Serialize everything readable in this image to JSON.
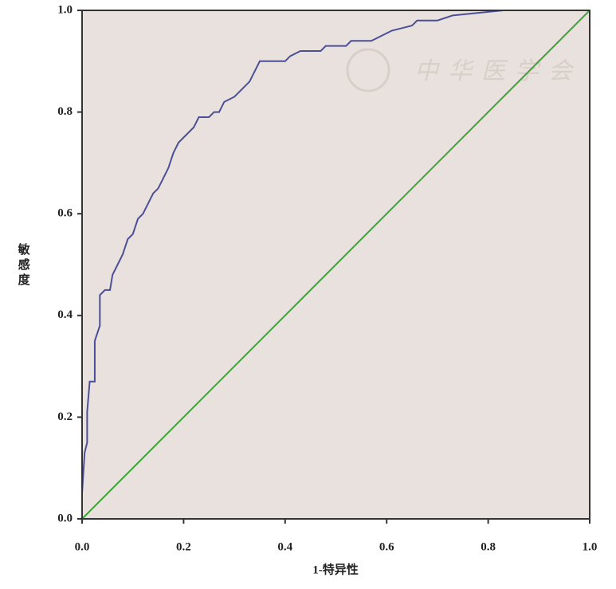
{
  "chart_data": {
    "type": "line",
    "xlabel": "1-特异性",
    "ylabel": "敏感度",
    "watermark": "中华医学会",
    "xlim": [
      0,
      1
    ],
    "ylim": [
      0,
      1
    ],
    "xticks": [
      {
        "value": 0,
        "label": "0.0"
      },
      0.2,
      0.4,
      0.6,
      0.8,
      {
        "value": 1,
        "label": "1.0"
      }
    ],
    "yticks": [
      {
        "value": 0,
        "label": "0.0"
      },
      0.2,
      0.4,
      0.6,
      0.8,
      {
        "value": 1,
        "label": "1.0"
      }
    ],
    "background": "#e9e1dd",
    "series": [
      {
        "color": "#4b4f98",
        "x": [
          0,
          0,
          0.005,
          0.01,
          0.01,
          0.015,
          0.025,
          0.025,
          0.035,
          0.035,
          0.045,
          0.055,
          0.06,
          0.07,
          0.08,
          0.09,
          0.1,
          0.11,
          0.12,
          0.13,
          0.14,
          0.15,
          0.16,
          0.17,
          0.18,
          0.19,
          0.2,
          0.21,
          0.22,
          0.23,
          0.25,
          0.26,
          0.27,
          0.28,
          0.3,
          0.31,
          0.32,
          0.33,
          0.34,
          0.35,
          0.4,
          0.41,
          0.43,
          0.47,
          0.48,
          0.52,
          0.53,
          0.57,
          0.59,
          0.61,
          0.65,
          0.66,
          0.7,
          0.73,
          0.83,
          1.0
        ],
        "values": [
          0,
          0.05,
          0.13,
          0.15,
          0.21,
          0.27,
          0.27,
          0.35,
          0.38,
          0.44,
          0.45,
          0.45,
          0.48,
          0.5,
          0.52,
          0.55,
          0.56,
          0.59,
          0.6,
          0.62,
          0.64,
          0.65,
          0.67,
          0.69,
          0.72,
          0.74,
          0.75,
          0.76,
          0.77,
          0.79,
          0.79,
          0.8,
          0.8,
          0.82,
          0.83,
          0.84,
          0.85,
          0.86,
          0.88,
          0.9,
          0.9,
          0.91,
          0.92,
          0.92,
          0.93,
          0.93,
          0.94,
          0.94,
          0.95,
          0.96,
          0.97,
          0.98,
          0.98,
          0.99,
          1.0,
          1.0
        ]
      },
      {
        "color": "#3ea43a",
        "x": [
          0,
          1
        ],
        "values": [
          0,
          1
        ]
      }
    ]
  }
}
